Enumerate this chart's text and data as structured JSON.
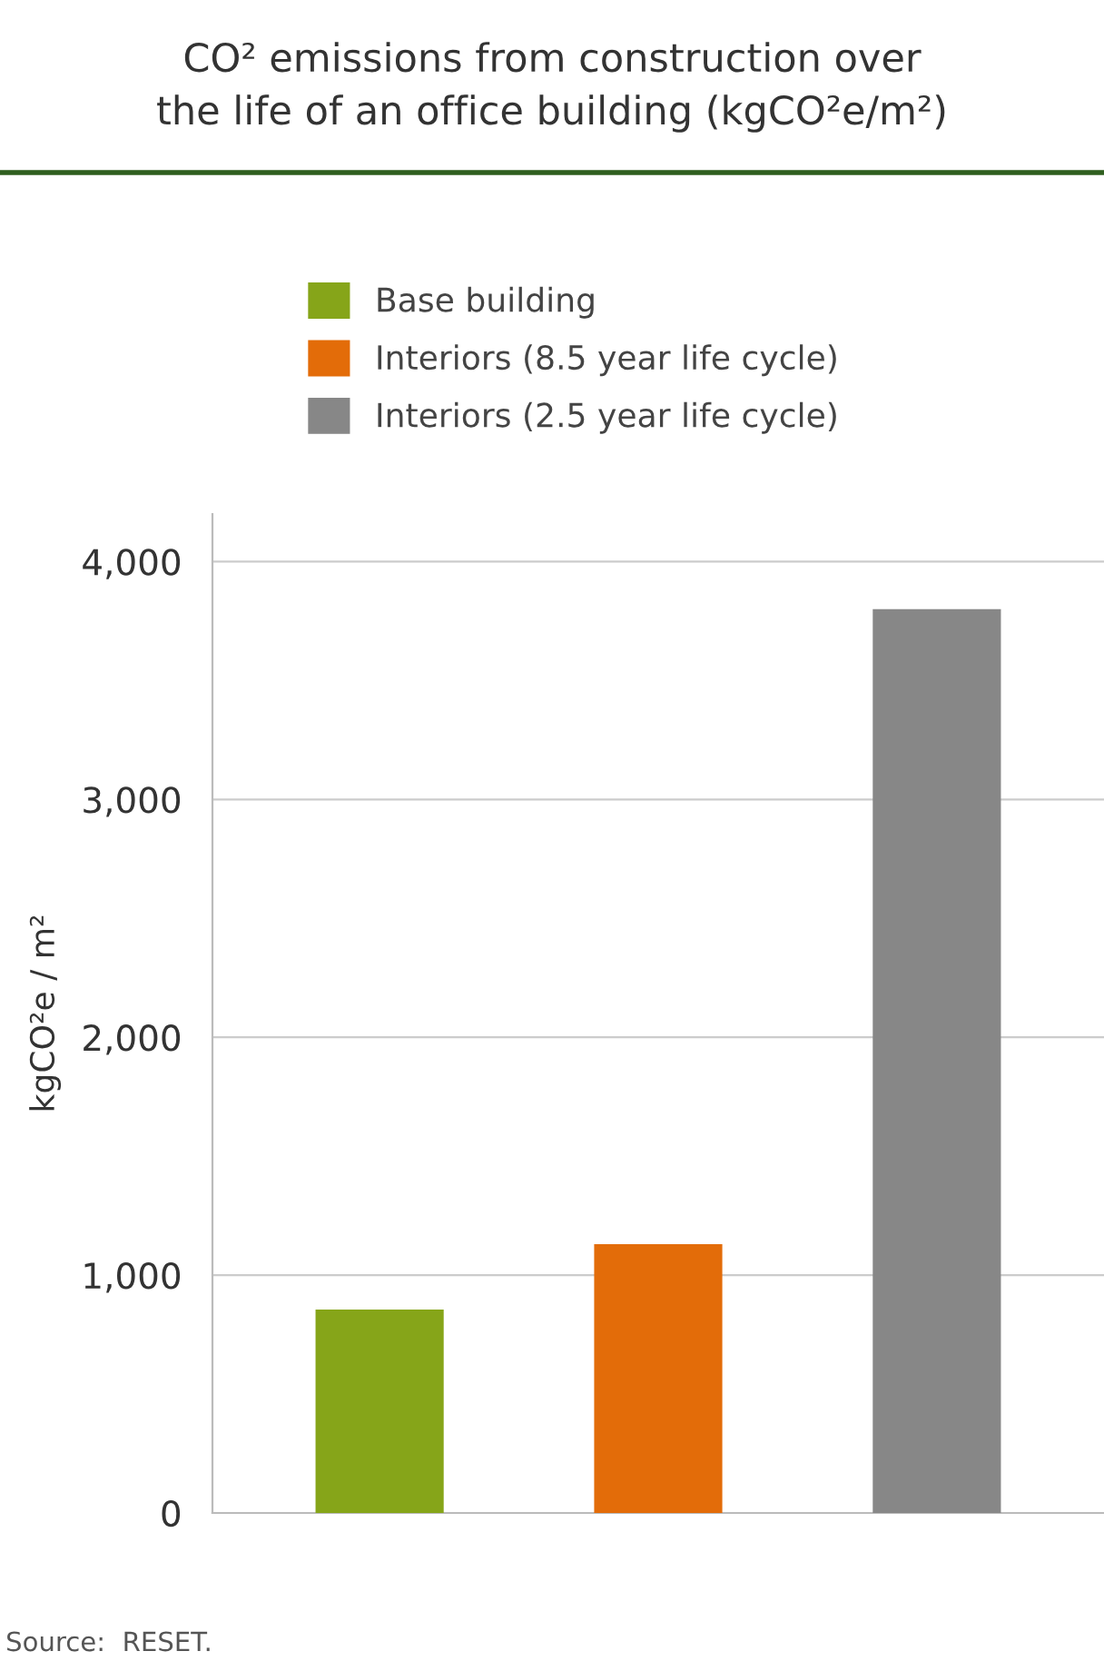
{
  "chart_data": {
    "type": "bar",
    "title": "CO² emissions from construction over\nthe life of an office building (kgCO²e/m²)",
    "ylabel": "kgCO²e / m²",
    "categories": [
      null,
      null,
      null
    ],
    "series": [
      {
        "name": "Base building",
        "color": "#86a519",
        "values": [
          855,
          null,
          null
        ]
      },
      {
        "name": "Interiors (8.5 year life cycle)",
        "color": "#e36c09",
        "values": [
          null,
          1130,
          null
        ]
      },
      {
        "name": "Interiors (2.5 year life cycle)",
        "color": "#878787",
        "values": [
          null,
          null,
          3800
        ]
      }
    ],
    "ylim": [
      0,
      4200
    ],
    "yticks": [
      {
        "value": 0,
        "label": "0"
      },
      {
        "value": 1000,
        "label": "1,000"
      },
      {
        "value": 2000,
        "label": "2,000"
      },
      {
        "value": 3000,
        "label": "3,000"
      },
      {
        "value": 4000,
        "label": "4,000"
      }
    ],
    "grid": "y",
    "legend": "top",
    "annotations": [
      "Source:  RESET."
    ]
  }
}
